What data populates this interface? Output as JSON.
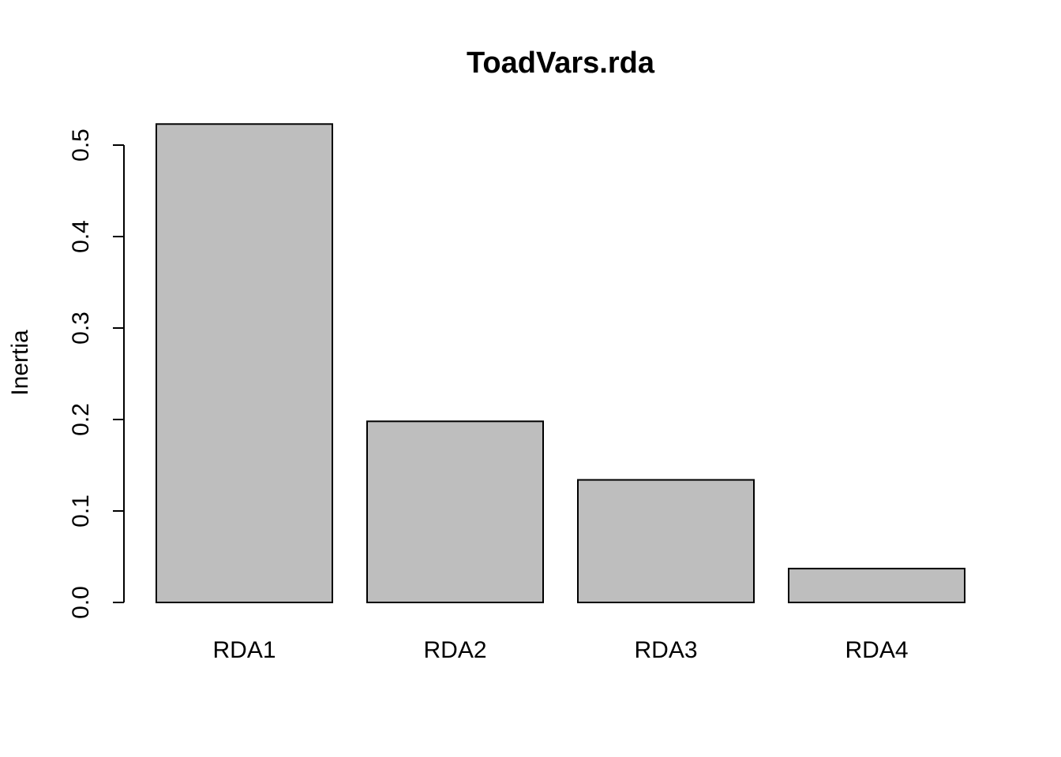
{
  "chart_data": {
    "type": "bar",
    "title": "ToadVars.rda",
    "xlabel": "",
    "ylabel": "Inertia",
    "categories": [
      "RDA1",
      "RDA2",
      "RDA3",
      "RDA4"
    ],
    "values": [
      0.523,
      0.198,
      0.134,
      0.037
    ],
    "ylim": [
      0,
      0.5
    ],
    "yticks": [
      0.0,
      0.1,
      0.2,
      0.3,
      0.4,
      0.5
    ],
    "ytick_labels": [
      "0.0",
      "0.1",
      "0.2",
      "0.3",
      "0.4",
      "0.5"
    ],
    "bar_color": "#bebebe",
    "grid": false,
    "legend": "none"
  }
}
